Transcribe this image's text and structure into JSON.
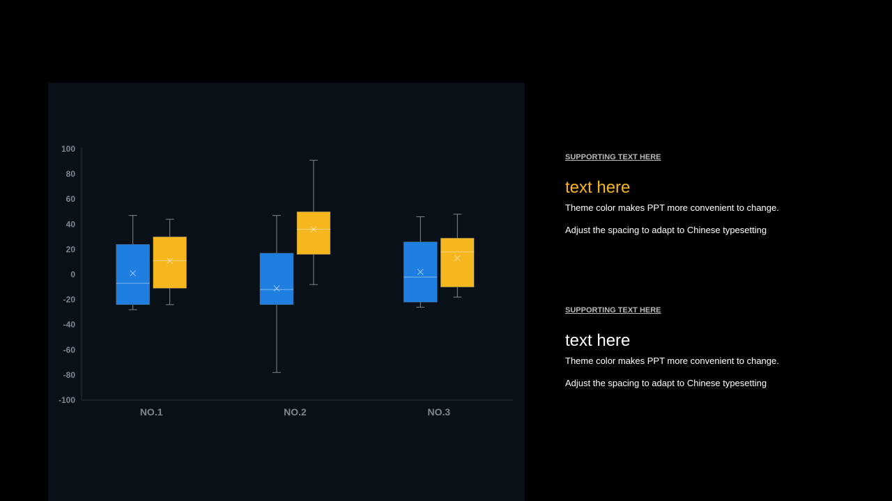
{
  "chart_data": {
    "type": "box",
    "categories": [
      "NO.1",
      "NO.2",
      "NO.3"
    ],
    "y_ticks": [
      "100",
      "80",
      "60",
      "40",
      "20",
      "0",
      "-20",
      "-40",
      "-60",
      "-80",
      "-100"
    ],
    "ylim": [
      -100,
      100
    ],
    "grid": false,
    "series": [
      {
        "color": "#1f7fe0",
        "boxes": [
          {
            "min": -28,
            "q1": -24,
            "median": -7,
            "q3": 24,
            "max": 47,
            "mean": 1
          },
          {
            "min": -78,
            "q1": -24,
            "median": -12,
            "q3": 17,
            "max": 47,
            "mean": -11
          },
          {
            "min": -26,
            "q1": -22,
            "median": -2,
            "q3": 26,
            "max": 46,
            "mean": 2
          }
        ]
      },
      {
        "color": "#f5b61e",
        "boxes": [
          {
            "min": -24,
            "q1": -11,
            "median": 11,
            "q3": 30,
            "max": 44,
            "mean": 11
          },
          {
            "min": -8,
            "q1": 16,
            "median": 36,
            "q3": 50,
            "max": 91,
            "mean": 36
          },
          {
            "min": -18,
            "q1": -10,
            "median": 18,
            "q3": 29,
            "max": 48,
            "mean": 13
          }
        ]
      }
    ]
  },
  "blocks": [
    {
      "supporting": "SUPPORTING TEXT HERE",
      "headline": "text here",
      "line1": "Theme color makes PPT more convenient to change.",
      "line2": "Adjust the spacing to adapt to Chinese typesetting"
    },
    {
      "supporting": "SUPPORTING TEXT HERE",
      "headline": "text here",
      "line1": "Theme color makes PPT more convenient to change.",
      "line2": "Adjust the spacing to adapt to Chinese typesetting"
    }
  ],
  "colors": {
    "background": "#000000",
    "panel": "#0a1018",
    "accent": "#f5b61e",
    "blue": "#1f7fe0",
    "axis_text": "#7d8792"
  }
}
